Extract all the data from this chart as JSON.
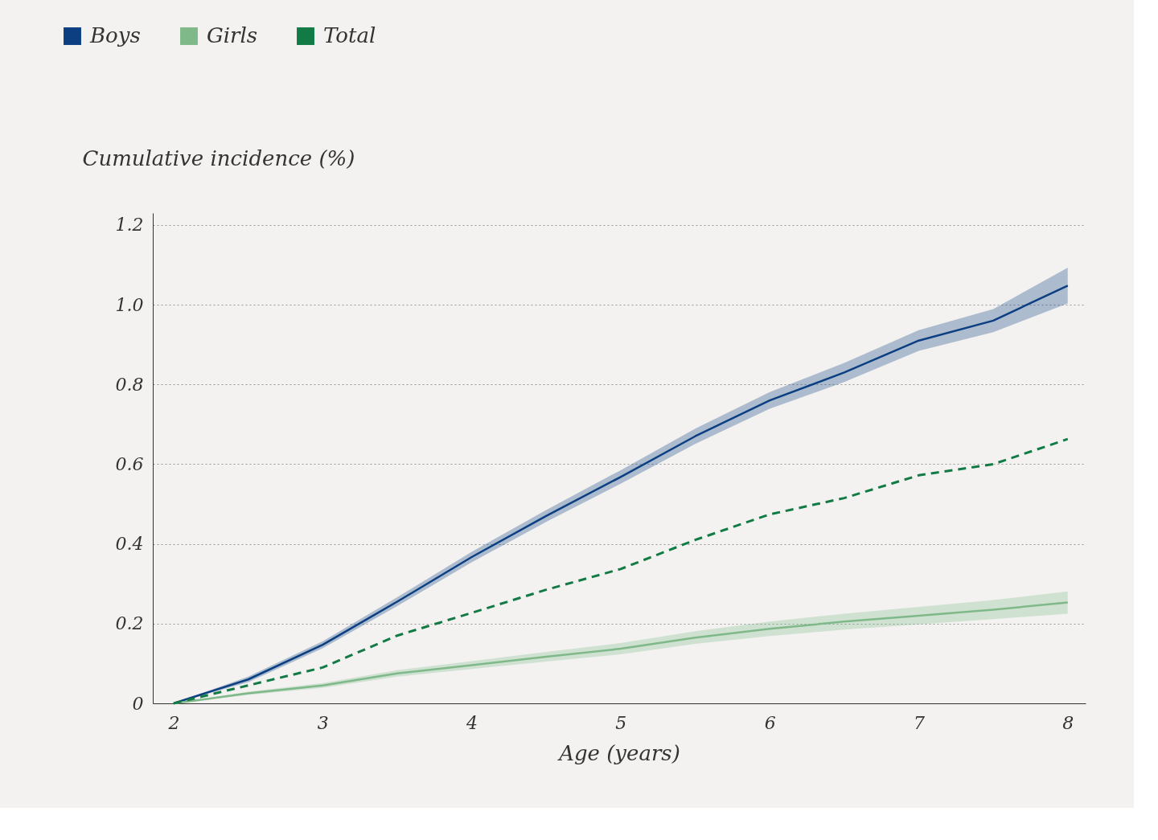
{
  "chart_data": {
    "type": "line",
    "xlabel": "Age (years)",
    "ylabel": "Cumulative incidence (%)",
    "x": [
      2,
      2.5,
      3,
      3.5,
      4,
      4.5,
      5,
      5.5,
      6,
      6.5,
      7,
      7.5,
      8
    ],
    "series": [
      {
        "name": "Boys",
        "color": "#0b3f82",
        "line_style": "solid",
        "values": [
          0,
          0.06,
          0.147,
          0.255,
          0.367,
          0.47,
          0.568,
          0.67,
          0.76,
          0.83,
          0.91,
          0.96,
          1.048
        ],
        "lower": [
          0,
          0.053,
          0.138,
          0.244,
          0.354,
          0.455,
          0.551,
          0.651,
          0.739,
          0.806,
          0.884,
          0.931,
          1.003
        ],
        "upper": [
          0,
          0.067,
          0.156,
          0.266,
          0.38,
          0.485,
          0.585,
          0.689,
          0.781,
          0.854,
          0.936,
          0.989,
          1.093
        ]
      },
      {
        "name": "Girls",
        "color": "#7fb98a",
        "line_style": "solid",
        "values": [
          0,
          0.025,
          0.045,
          0.075,
          0.096,
          0.117,
          0.137,
          0.165,
          0.187,
          0.205,
          0.22,
          0.235,
          0.253
        ],
        "lower": [
          0,
          0.021,
          0.039,
          0.067,
          0.086,
          0.105,
          0.123,
          0.149,
          0.169,
          0.185,
          0.198,
          0.211,
          0.225
        ],
        "upper": [
          0,
          0.029,
          0.051,
          0.083,
          0.106,
          0.129,
          0.151,
          0.181,
          0.205,
          0.225,
          0.242,
          0.259,
          0.281
        ]
      },
      {
        "name": "Total",
        "color": "#127a44",
        "line_style": "dashed",
        "values": [
          0,
          0.045,
          0.09,
          0.17,
          0.227,
          0.285,
          0.337,
          0.41,
          0.474,
          0.515,
          0.572,
          0.6,
          0.663
        ]
      }
    ],
    "xlim": [
      1.86,
      8.12
    ],
    "xticks": [
      2,
      3,
      4,
      5,
      6,
      7,
      8
    ],
    "ylim": [
      0,
      1.23
    ],
    "yticks": [
      0,
      0.2,
      0.4,
      0.6,
      0.8,
      {
        "value": 1.0,
        "label": "1.0"
      },
      1.2
    ],
    "grid": "y",
    "legend": "top left",
    "marker": "none"
  }
}
